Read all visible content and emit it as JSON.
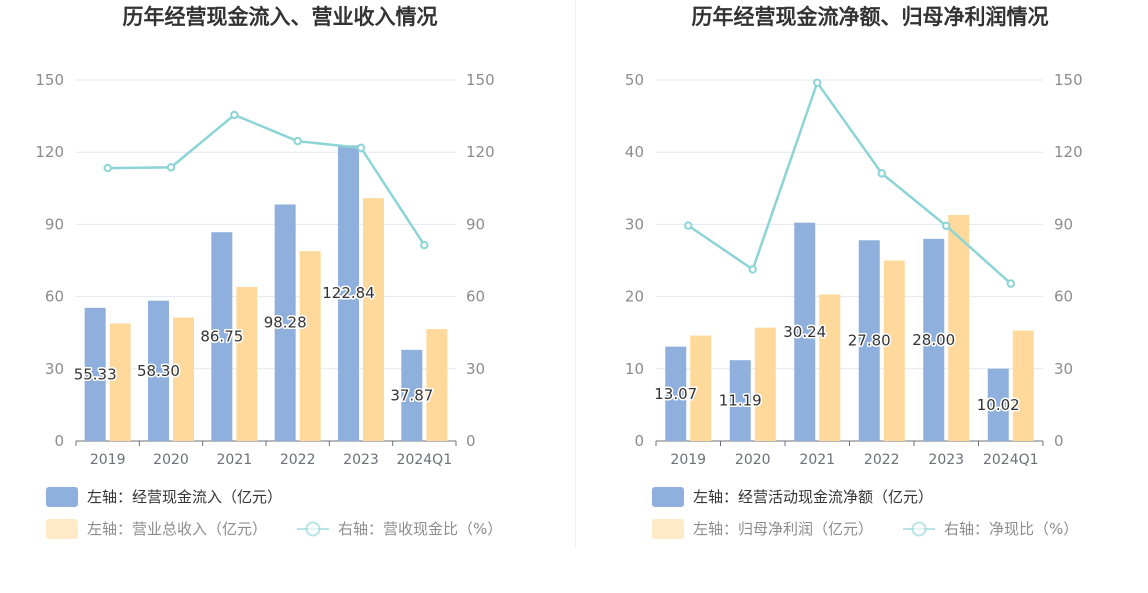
{
  "charts": [
    {
      "id": "left",
      "chart_data": {
        "type": "bar",
        "title": "历年经营现金流入、营业收入情况",
        "categories": [
          "2019",
          "2020",
          "2021",
          "2022",
          "2023",
          "2024Q1"
        ],
        "ylim_left": [
          0,
          150
        ],
        "ylim_right": [
          0,
          150
        ],
        "yticks_left": [
          "0",
          "30",
          "60",
          "90",
          "120",
          "150"
        ],
        "yticks_right": [
          "0",
          "30",
          "60",
          "90",
          "120",
          "150"
        ],
        "series": [
          {
            "name": "左轴：经营现金流入（亿元）",
            "type": "bar",
            "axis": "left",
            "color": "#8fafdc",
            "values": [
              55.33,
              58.3,
              86.75,
              98.28,
              122.84,
              37.87
            ],
            "labels": [
              "55.33",
              "58.30",
              "86.75",
              "98.28",
              "122.84",
              "37.87"
            ]
          },
          {
            "name": "左轴：营业总收入（亿元）",
            "type": "bar",
            "axis": "left",
            "color": "#ffd99b",
            "values": [
              48.8,
              51.3,
              64.0,
              78.9,
              100.9,
              46.5
            ]
          },
          {
            "name": "右轴：营收现金比（%）",
            "type": "line",
            "axis": "right",
            "color": "#8dd4d6",
            "values": [
              113.4,
              113.7,
              135.5,
              124.6,
              121.8,
              81.4
            ]
          }
        ],
        "grid": true
      }
    },
    {
      "id": "right",
      "chart_data": {
        "type": "bar",
        "title": "历年经营现金流净额、归母净利润情况",
        "categories": [
          "2019",
          "2020",
          "2021",
          "2022",
          "2023",
          "2024Q1"
        ],
        "ylim_left": [
          0,
          50
        ],
        "ylim_right": [
          0,
          150
        ],
        "yticks_left": [
          "0",
          "10",
          "20",
          "30",
          "40",
          "50"
        ],
        "yticks_right": [
          "0",
          "30",
          "60",
          "90",
          "120",
          "150"
        ],
        "series": [
          {
            "name": "左轴：经营活动现金流净额（亿元）",
            "type": "bar",
            "axis": "left",
            "color": "#8fafdc",
            "values": [
              13.07,
              11.19,
              30.24,
              27.8,
              28.0,
              10.02
            ],
            "labels": [
              "13.07",
              "11.19",
              "30.24",
              "27.80",
              "28.00",
              "10.02"
            ]
          },
          {
            "name": "左轴：归母净利润（亿元）",
            "type": "bar",
            "axis": "left",
            "color": "#ffd99b",
            "values": [
              14.6,
              15.7,
              20.3,
              25.0,
              31.3,
              15.3
            ]
          },
          {
            "name": "右轴：净现比（%）",
            "type": "line",
            "axis": "right",
            "color": "#8dd4d6",
            "values": [
              89.5,
              71.3,
              148.9,
              111.2,
              89.4,
              65.4
            ]
          }
        ],
        "grid": true
      }
    }
  ]
}
